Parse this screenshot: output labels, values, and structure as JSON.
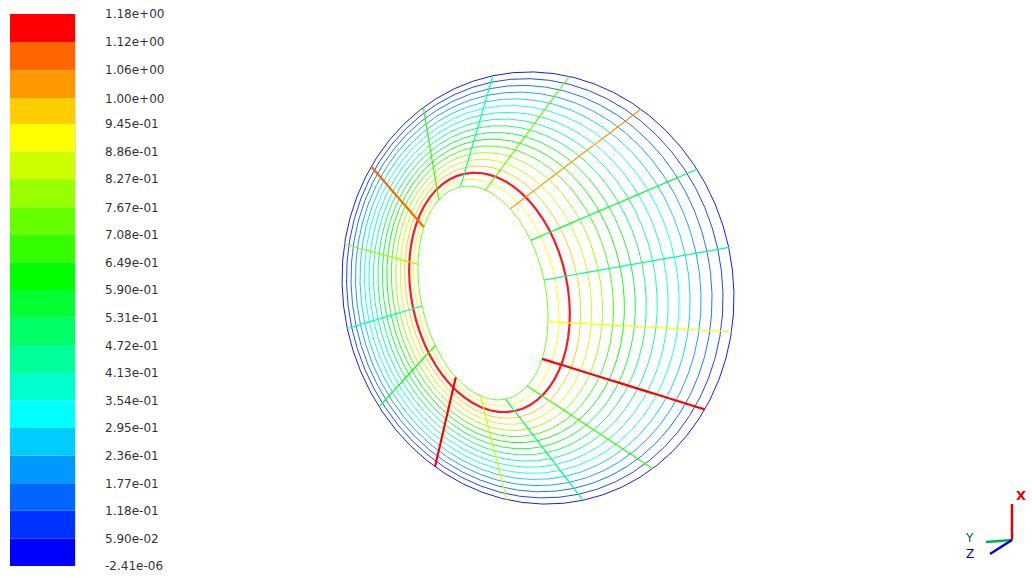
{
  "chart_data": {
    "type": "contour",
    "colorbar": {
      "clim": [
        -2.41e-06,
        1.18
      ],
      "ticks": [
        {
          "value": -2.41e-06,
          "label": "-2.41e-06"
        },
        {
          "value": 0.059,
          "label": "5.90e-02"
        },
        {
          "value": 0.118,
          "label": "1.18e-01"
        },
        {
          "value": 0.177,
          "label": "1.77e-01"
        },
        {
          "value": 0.236,
          "label": "2.36e-01"
        },
        {
          "value": 0.295,
          "label": "2.95e-01"
        },
        {
          "value": 0.354,
          "label": "3.54e-01"
        },
        {
          "value": 0.413,
          "label": "4.13e-01"
        },
        {
          "value": 0.472,
          "label": "4.72e-01"
        },
        {
          "value": 0.531,
          "label": "5.31e-01"
        },
        {
          "value": 0.59,
          "label": "5.90e-01"
        },
        {
          "value": 0.649,
          "label": "6.49e-01"
        },
        {
          "value": 0.708,
          "label": "7.08e-01"
        },
        {
          "value": 0.767,
          "label": "7.67e-01"
        },
        {
          "value": 0.827,
          "label": "8.27e-01"
        },
        {
          "value": 0.886,
          "label": "8.86e-01"
        },
        {
          "value": 0.945,
          "label": "9.45e-01"
        },
        {
          "value": 1.0,
          "label": "1.00e+00"
        },
        {
          "value": 1.06,
          "label": "1.06e+00"
        },
        {
          "value": 1.12,
          "label": "1.12e+00"
        },
        {
          "value": 1.18,
          "label": "1.18e+00"
        }
      ],
      "colors": [
        "#0000ff",
        "#0033ff",
        "#0066ff",
        "#0099ff",
        "#00ccff",
        "#00ffff",
        "#00ffcc",
        "#00ff99",
        "#00ff66",
        "#00ff33",
        "#00ff00",
        "#33ff00",
        "#66ff00",
        "#99ff00",
        "#ccff00",
        "#ffff00",
        "#ffcc00",
        "#ff9900",
        "#ff6600",
        "#ff0000"
      ]
    },
    "mesh": {
      "ring_values": [
        0.03,
        0.1,
        0.15,
        0.2,
        0.26,
        0.32,
        0.38,
        0.44,
        0.5,
        0.56,
        0.62,
        0.7,
        0.78,
        0.86,
        0.95,
        1.15,
        0.9,
        0.75
      ],
      "spoke_values": [
        0.45,
        0.9,
        1.15,
        0.7,
        0.5,
        0.85,
        1.15,
        0.6,
        0.4,
        0.8,
        1.1,
        0.65,
        0.45,
        0.75,
        1.0,
        0.55
      ]
    },
    "axes_triad": {
      "x": "X",
      "y": "Y",
      "z": "Z"
    }
  }
}
